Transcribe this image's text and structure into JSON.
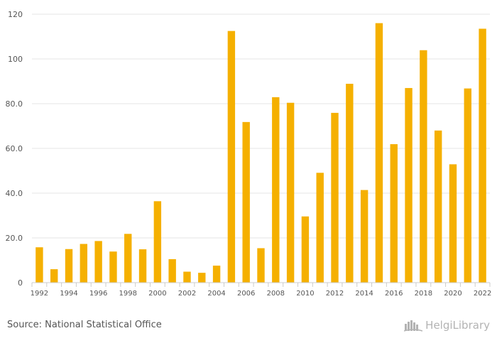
{
  "chart_data": {
    "type": "bar",
    "categories": [
      "1992",
      "1993",
      "1994",
      "1995",
      "1996",
      "1997",
      "1998",
      "1999",
      "2000",
      "2001",
      "2002",
      "2003",
      "2004",
      "2005",
      "2006",
      "2007",
      "2008",
      "2009",
      "2010",
      "2011",
      "2012",
      "2013",
      "2014",
      "2015",
      "2016",
      "2017",
      "2018",
      "2019",
      "2020",
      "2021",
      "2022"
    ],
    "x_tick_labels": [
      "1992",
      "1994",
      "1996",
      "1998",
      "2000",
      "2002",
      "2004",
      "2006",
      "2008",
      "2010",
      "2012",
      "2014",
      "2016",
      "2018",
      "2020",
      "2022"
    ],
    "values": [
      15.8,
      6.0,
      15.0,
      17.3,
      18.6,
      13.9,
      21.8,
      14.9,
      36.4,
      10.5,
      4.9,
      4.4,
      7.6,
      112.5,
      71.8,
      15.4,
      82.9,
      80.4,
      29.6,
      49.1,
      75.9,
      88.9,
      41.4,
      116.0,
      61.9,
      87.0,
      103.9,
      68.0,
      52.9,
      86.8,
      113.5
    ],
    "y_ticks": [
      0,
      20.0,
      40.0,
      60.0,
      80.0,
      100,
      120
    ],
    "y_tick_labels": [
      "0",
      "20.0",
      "40.0",
      "60.0",
      "80.0",
      "100",
      "120"
    ],
    "ylim": [
      0,
      120
    ],
    "title": "",
    "xlabel": "",
    "ylabel": "",
    "grid": true,
    "bar_color": "#f5b000",
    "grid_color": "#e6e6e6",
    "axis_color": "#cccccc",
    "tick_label_color": "#555555"
  },
  "footer": {
    "source": "Source: National Statistical Office",
    "logo_text": "HelgiLibrary",
    "logo_icon": "helgi-library-logo-icon"
  }
}
